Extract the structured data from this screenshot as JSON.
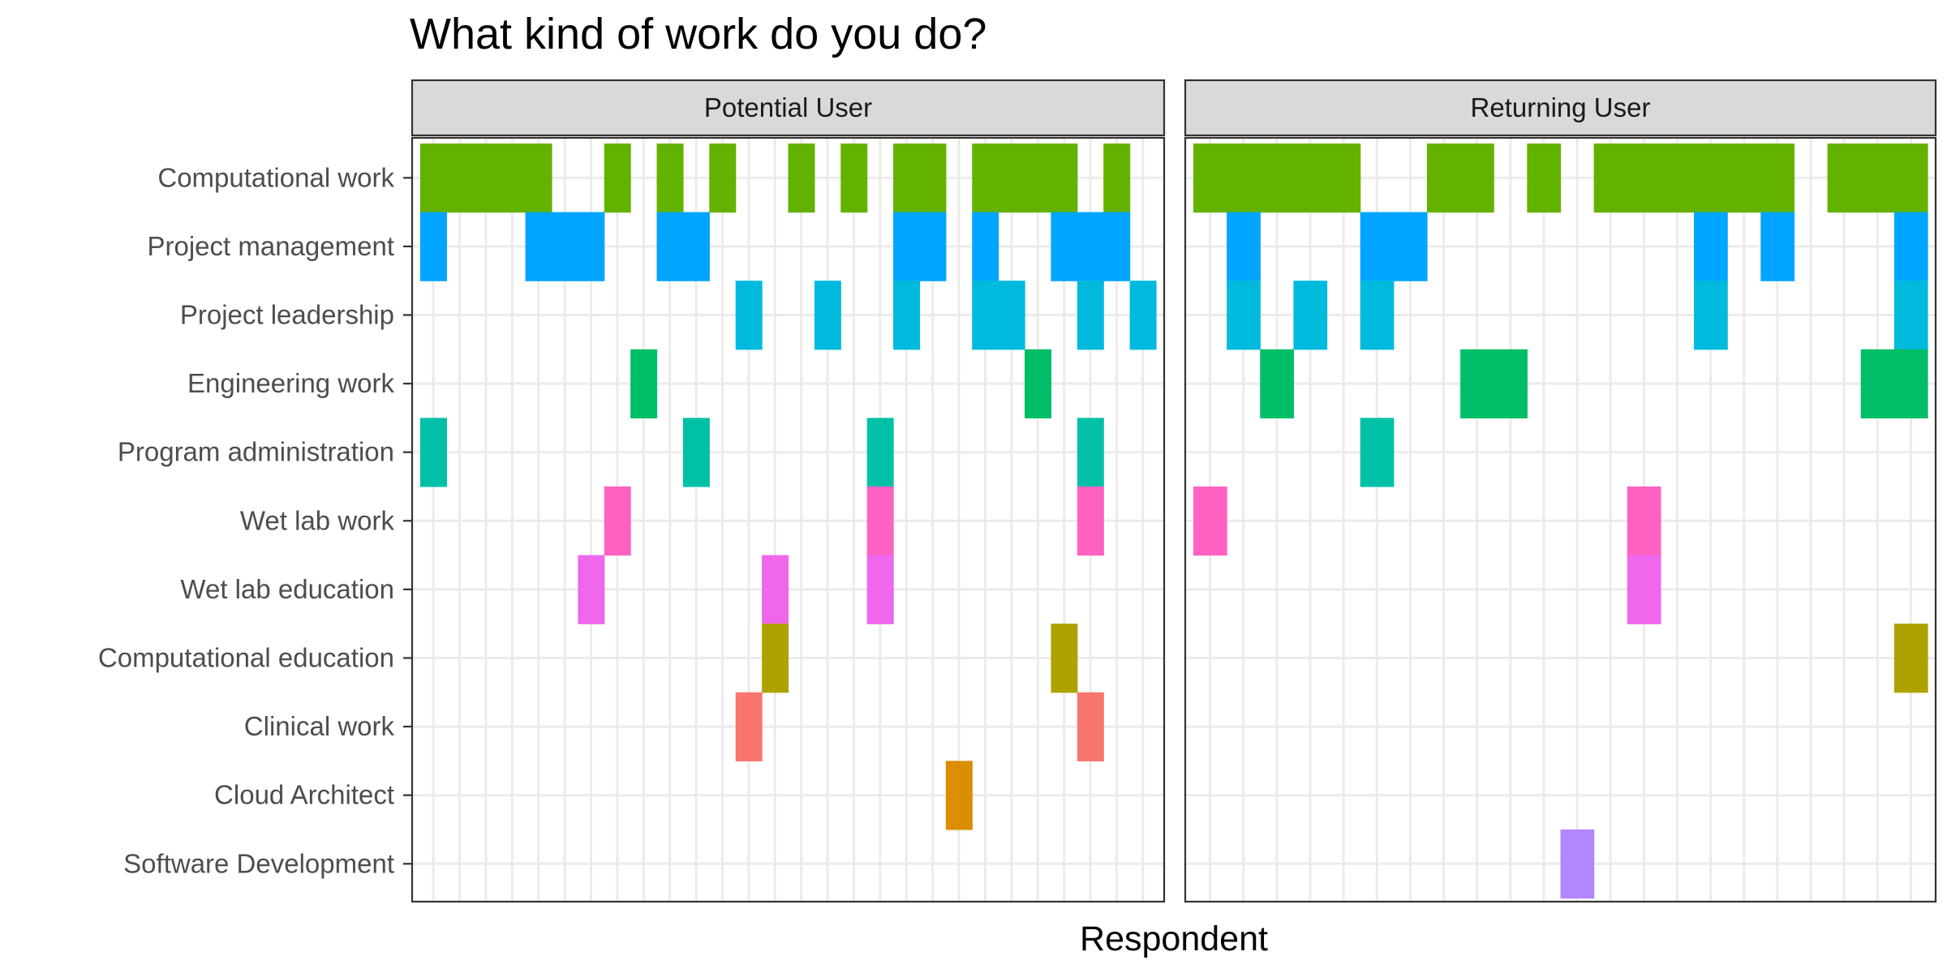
{
  "chart_data": {
    "type": "heatmap",
    "title": "What kind of work do you do?",
    "xlabel": "Respondent",
    "ylabel": "",
    "grid": true,
    "legend": "none",
    "categories": [
      "Computational work",
      "Project management",
      "Project leadership",
      "Engineering work",
      "Program administration",
      "Wet lab work",
      "Wet lab education",
      "Computational education",
      "Clinical work",
      "Cloud Architect",
      "Software Development"
    ],
    "colors": {
      "Computational work": "#64b200",
      "Project management": "#00a5ff",
      "Project leadership": "#00bade",
      "Engineering work": "#00be67",
      "Program administration": "#00c1a7",
      "Wet lab work": "#ff61c3",
      "Wet lab education": "#ef67eb",
      "Computational education": "#aea200",
      "Clinical work": "#f8766d",
      "Cloud Architect": "#db8e00",
      "Software Development": "#b385ff"
    },
    "panels": [
      {
        "name": "Potential User",
        "respondent_count": 28,
        "cells": {
          "Computational work": [
            1,
            2,
            3,
            4,
            5,
            8,
            10,
            12,
            15,
            17,
            19,
            20,
            22,
            23,
            24,
            25,
            27
          ],
          "Project management": [
            1,
            5,
            6,
            7,
            10,
            11,
            19,
            20,
            22,
            25,
            26,
            27
          ],
          "Project leadership": [
            13,
            16,
            19,
            22,
            23,
            26,
            28
          ],
          "Engineering work": [
            9,
            24
          ],
          "Program administration": [
            1,
            11,
            18,
            26
          ],
          "Wet lab work": [
            8,
            18,
            26
          ],
          "Wet lab education": [
            7,
            14,
            18
          ],
          "Computational education": [
            14,
            25
          ],
          "Clinical work": [
            13,
            26
          ],
          "Cloud Architect": [
            21
          ],
          "Software Development": []
        }
      },
      {
        "name": "Returning User",
        "respondent_count": 22,
        "cells": {
          "Computational work": [
            1,
            2,
            3,
            4,
            5,
            8,
            9,
            11,
            13,
            14,
            15,
            16,
            17,
            18,
            20,
            21,
            22
          ],
          "Project management": [
            2,
            6,
            7,
            16,
            18,
            22
          ],
          "Project leadership": [
            2,
            4,
            6,
            16,
            22
          ],
          "Engineering work": [
            3,
            9,
            10,
            21,
            22
          ],
          "Program administration": [
            6
          ],
          "Wet lab work": [
            1,
            14
          ],
          "Wet lab education": [
            14
          ],
          "Computational education": [
            22
          ],
          "Clinical work": [],
          "Cloud Architect": [],
          "Software Development": [
            12
          ]
        }
      }
    ]
  }
}
